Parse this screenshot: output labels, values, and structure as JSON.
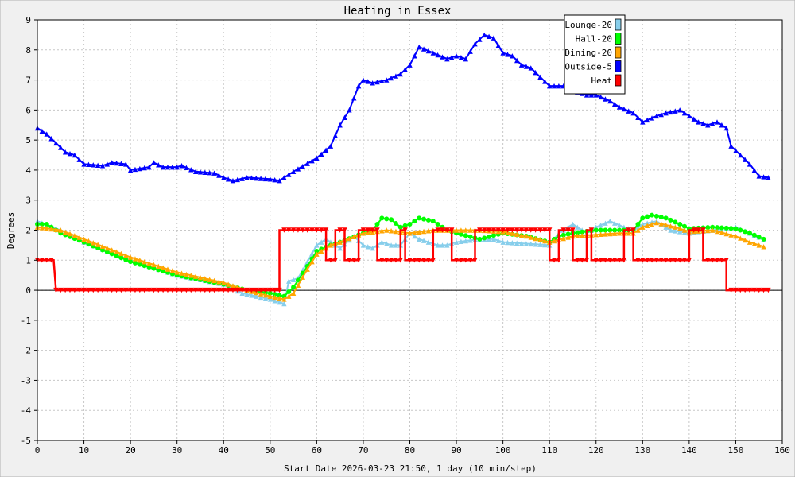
{
  "chart_data": {
    "type": "line",
    "title": "Heating in Essex",
    "xlabel": "Start Date 2026-03-23 21:50, 1 day (10 min/step)",
    "ylabel": "Degrees",
    "xlim": [
      0,
      160
    ],
    "ylim": [
      -5,
      9
    ],
    "x_ticks": [
      0,
      10,
      20,
      30,
      40,
      50,
      60,
      70,
      80,
      90,
      100,
      110,
      120,
      130,
      140,
      150,
      160
    ],
    "y_ticks": [
      -5,
      -4,
      -3,
      -2,
      -1,
      0,
      1,
      2,
      3,
      4,
      5,
      6,
      7,
      8,
      9
    ],
    "grid": true,
    "legend_position": "top-right",
    "colors": {
      "background": "#f0f0f0",
      "plot_background": "#ffffff",
      "grid": "#c8c8c8"
    },
    "series": [
      {
        "name": "Lounge-20",
        "color": "#87ceeb",
        "marker": "triangle-up",
        "points": [
          [
            0,
            2.3
          ],
          [
            5,
            2.0
          ],
          [
            10,
            1.6
          ],
          [
            20,
            1.0
          ],
          [
            30,
            0.5
          ],
          [
            40,
            0.2
          ],
          [
            44,
            -0.1
          ],
          [
            50,
            -0.3
          ],
          [
            53,
            -0.45
          ],
          [
            54,
            0.3
          ],
          [
            56,
            0.4
          ],
          [
            60,
            1.5
          ],
          [
            62,
            1.7
          ],
          [
            65,
            1.4
          ],
          [
            68,
            1.8
          ],
          [
            70,
            1.5
          ],
          [
            72,
            1.4
          ],
          [
            74,
            1.6
          ],
          [
            76,
            1.5
          ],
          [
            78,
            1.5
          ],
          [
            80,
            1.9
          ],
          [
            82,
            1.7
          ],
          [
            86,
            1.5
          ],
          [
            88,
            1.5
          ],
          [
            90,
            1.6
          ],
          [
            95,
            1.7
          ],
          [
            98,
            1.7
          ],
          [
            100,
            1.6
          ],
          [
            110,
            1.5
          ],
          [
            112,
            1.9
          ],
          [
            115,
            2.2
          ],
          [
            118,
            1.9
          ],
          [
            120,
            2.1
          ],
          [
            123,
            2.3
          ],
          [
            126,
            2.1
          ],
          [
            128,
            2.0
          ],
          [
            130,
            2.2
          ],
          [
            133,
            2.3
          ],
          [
            136,
            2.0
          ],
          [
            140,
            1.9
          ],
          [
            142,
            1.95
          ],
          [
            145,
            2.0
          ],
          [
            150,
            2.1
          ],
          [
            153,
            1.9
          ],
          [
            156,
            1.7
          ]
        ]
      },
      {
        "name": "Hall-20",
        "color": "#00ff00",
        "marker": "circle",
        "points": [
          [
            0,
            2.2
          ],
          [
            2,
            2.2
          ],
          [
            5,
            1.9
          ],
          [
            10,
            1.6
          ],
          [
            20,
            0.95
          ],
          [
            30,
            0.5
          ],
          [
            40,
            0.2
          ],
          [
            45,
            0.0
          ],
          [
            50,
            -0.1
          ],
          [
            53,
            -0.2
          ],
          [
            55,
            0.1
          ],
          [
            58,
            0.8
          ],
          [
            60,
            1.3
          ],
          [
            63,
            1.5
          ],
          [
            65,
            1.6
          ],
          [
            70,
            1.9
          ],
          [
            72,
            2.0
          ],
          [
            74,
            2.4
          ],
          [
            76,
            2.35
          ],
          [
            78,
            2.1
          ],
          [
            80,
            2.2
          ],
          [
            82,
            2.4
          ],
          [
            85,
            2.3
          ],
          [
            88,
            2.0
          ],
          [
            90,
            1.9
          ],
          [
            95,
            1.7
          ],
          [
            100,
            1.9
          ],
          [
            105,
            1.8
          ],
          [
            110,
            1.6
          ],
          [
            112,
            1.8
          ],
          [
            115,
            1.9
          ],
          [
            120,
            2.0
          ],
          [
            125,
            2.0
          ],
          [
            128,
            2.0
          ],
          [
            130,
            2.4
          ],
          [
            132,
            2.5
          ],
          [
            135,
            2.4
          ],
          [
            138,
            2.2
          ],
          [
            140,
            2.05
          ],
          [
            145,
            2.1
          ],
          [
            150,
            2.05
          ],
          [
            153,
            1.9
          ],
          [
            156,
            1.7
          ]
        ]
      },
      {
        "name": "Dining-20",
        "color": "#ffa500",
        "marker": "triangle-up",
        "points": [
          [
            0,
            2.1
          ],
          [
            5,
            2.0
          ],
          [
            10,
            1.7
          ],
          [
            20,
            1.1
          ],
          [
            30,
            0.6
          ],
          [
            40,
            0.25
          ],
          [
            45,
            0.0
          ],
          [
            50,
            -0.2
          ],
          [
            53,
            -0.3
          ],
          [
            55,
            -0.1
          ],
          [
            58,
            0.7
          ],
          [
            60,
            1.2
          ],
          [
            63,
            1.5
          ],
          [
            65,
            1.6
          ],
          [
            70,
            1.9
          ],
          [
            75,
            2.0
          ],
          [
            80,
            1.9
          ],
          [
            85,
            2.0
          ],
          [
            90,
            2.0
          ],
          [
            95,
            2.0
          ],
          [
            100,
            1.95
          ],
          [
            105,
            1.8
          ],
          [
            110,
            1.6
          ],
          [
            115,
            1.8
          ],
          [
            120,
            1.85
          ],
          [
            125,
            1.9
          ],
          [
            128,
            1.9
          ],
          [
            130,
            2.1
          ],
          [
            133,
            2.25
          ],
          [
            137,
            2.1
          ],
          [
            140,
            1.95
          ],
          [
            145,
            2.0
          ],
          [
            150,
            1.8
          ],
          [
            153,
            1.6
          ],
          [
            156,
            1.45
          ]
        ]
      },
      {
        "name": "Outside-5",
        "color": "#0000ff",
        "marker": "triangle-up",
        "points": [
          [
            0,
            5.4
          ],
          [
            2,
            5.2
          ],
          [
            4,
            4.9
          ],
          [
            6,
            4.6
          ],
          [
            8,
            4.5
          ],
          [
            10,
            4.2
          ],
          [
            14,
            4.15
          ],
          [
            16,
            4.25
          ],
          [
            19,
            4.2
          ],
          [
            20,
            4.0
          ],
          [
            24,
            4.1
          ],
          [
            25,
            4.25
          ],
          [
            27,
            4.1
          ],
          [
            30,
            4.1
          ],
          [
            31,
            4.15
          ],
          [
            34,
            3.95
          ],
          [
            38,
            3.9
          ],
          [
            40,
            3.75
          ],
          [
            42,
            3.65
          ],
          [
            45,
            3.75
          ],
          [
            50,
            3.7
          ],
          [
            52,
            3.65
          ],
          [
            55,
            3.95
          ],
          [
            60,
            4.4
          ],
          [
            63,
            4.8
          ],
          [
            65,
            5.5
          ],
          [
            67,
            6.0
          ],
          [
            69,
            6.8
          ],
          [
            70,
            7.0
          ],
          [
            72,
            6.9
          ],
          [
            75,
            7.0
          ],
          [
            78,
            7.2
          ],
          [
            80,
            7.5
          ],
          [
            82,
            8.1
          ],
          [
            85,
            7.9
          ],
          [
            88,
            7.7
          ],
          [
            90,
            7.8
          ],
          [
            92,
            7.7
          ],
          [
            94,
            8.2
          ],
          [
            96,
            8.5
          ],
          [
            98,
            8.4
          ],
          [
            100,
            7.9
          ],
          [
            102,
            7.8
          ],
          [
            104,
            7.5
          ],
          [
            106,
            7.4
          ],
          [
            108,
            7.1
          ],
          [
            110,
            6.8
          ],
          [
            114,
            6.8
          ],
          [
            116,
            6.6
          ],
          [
            118,
            6.5
          ],
          [
            120,
            6.5
          ],
          [
            123,
            6.3
          ],
          [
            125,
            6.1
          ],
          [
            128,
            5.9
          ],
          [
            130,
            5.6
          ],
          [
            133,
            5.8
          ],
          [
            135,
            5.9
          ],
          [
            138,
            6.0
          ],
          [
            140,
            5.8
          ],
          [
            142,
            5.6
          ],
          [
            144,
            5.5
          ],
          [
            146,
            5.6
          ],
          [
            148,
            5.4
          ],
          [
            149,
            4.8
          ],
          [
            151,
            4.5
          ],
          [
            153,
            4.2
          ],
          [
            155,
            3.8
          ],
          [
            157,
            3.75
          ]
        ]
      },
      {
        "name": "Heat",
        "color": "#ff0000",
        "marker": "triangle-down",
        "points": [
          [
            0,
            1
          ],
          [
            3.5,
            1
          ],
          [
            4,
            0
          ],
          [
            52,
            0
          ],
          [
            52,
            2
          ],
          [
            62,
            2
          ],
          [
            62,
            1
          ],
          [
            64,
            1
          ],
          [
            64,
            2
          ],
          [
            66,
            2
          ],
          [
            66,
            1
          ],
          [
            69,
            1
          ],
          [
            69,
            2
          ],
          [
            73,
            2
          ],
          [
            73,
            1
          ],
          [
            78,
            1
          ],
          [
            78,
            2
          ],
          [
            79,
            2
          ],
          [
            79,
            1
          ],
          [
            85,
            1
          ],
          [
            85,
            2
          ],
          [
            89,
            2
          ],
          [
            89,
            1
          ],
          [
            94,
            1
          ],
          [
            94,
            2
          ],
          [
            110,
            2
          ],
          [
            110,
            1
          ],
          [
            112,
            1
          ],
          [
            112,
            2
          ],
          [
            115,
            2
          ],
          [
            115,
            1
          ],
          [
            118,
            1
          ],
          [
            118,
            2
          ],
          [
            119,
            2
          ],
          [
            119,
            1
          ],
          [
            126,
            1
          ],
          [
            126,
            2
          ],
          [
            128,
            2
          ],
          [
            128,
            1
          ],
          [
            140,
            1
          ],
          [
            140,
            2
          ],
          [
            143,
            2
          ],
          [
            143,
            1
          ],
          [
            148,
            1
          ],
          [
            148,
            0
          ],
          [
            157,
            0
          ]
        ]
      }
    ]
  }
}
